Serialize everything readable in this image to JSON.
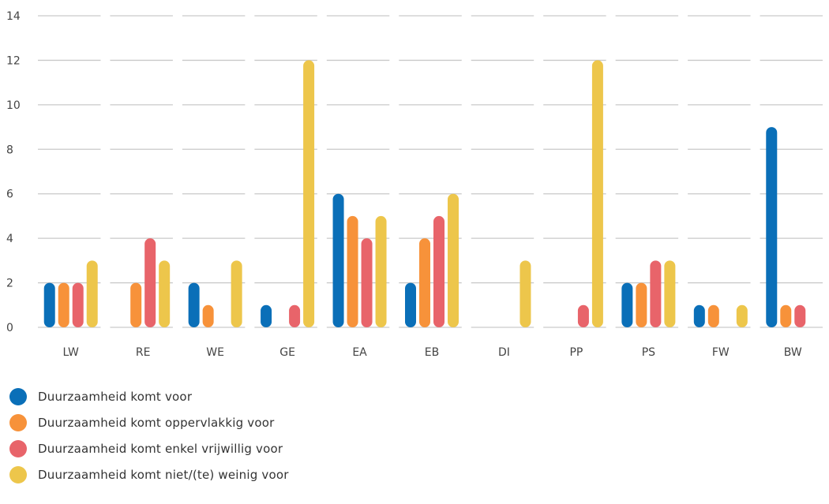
{
  "chart_data": {
    "type": "bar",
    "categories": [
      "LW",
      "RE",
      "WE",
      "GE",
      "EA",
      "EB",
      "DI",
      "PP",
      "PS",
      "FW",
      "BW"
    ],
    "series": [
      {
        "name": "Duurzaamheid komt voor",
        "color": "#0a6fb8",
        "values": [
          2,
          0,
          2,
          1,
          6,
          2,
          0,
          0,
          2,
          1,
          9
        ]
      },
      {
        "name": "Duurzaamheid komt oppervlakkig voor",
        "color": "#f7923a",
        "values": [
          2,
          2,
          1,
          0,
          5,
          4,
          0,
          0,
          2,
          1,
          1
        ]
      },
      {
        "name": "Duurzaamheid komt enkel vrijwillig voor",
        "color": "#e8646a",
        "values": [
          2,
          4,
          0,
          1,
          4,
          5,
          0,
          1,
          3,
          0,
          1
        ]
      },
      {
        "name": "Duurzaamheid komt niet/(te) weinig voor",
        "color": "#edc64b",
        "values": [
          3,
          3,
          3,
          12,
          5,
          6,
          3,
          12,
          3,
          1,
          0
        ]
      }
    ],
    "yticks": [
      0,
      2,
      4,
      6,
      8,
      10,
      12,
      14
    ],
    "ylim": [
      0,
      14
    ],
    "grid": true,
    "legend_position": "bottom-left",
    "title": "",
    "xlabel": "",
    "ylabel": ""
  }
}
